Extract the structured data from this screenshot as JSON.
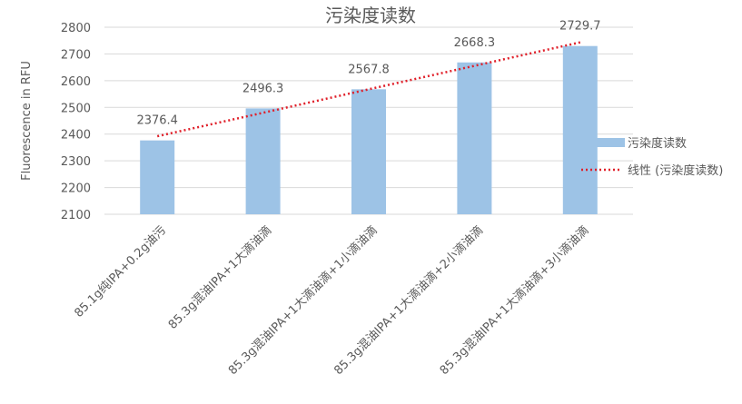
{
  "chart_data": {
    "type": "bar",
    "title": "污染度读数",
    "ylabel": "Fluorescence in RFU",
    "xlabel": "",
    "ylim": [
      2100,
      2800
    ],
    "yticks": [
      2100,
      2200,
      2300,
      2400,
      2500,
      2600,
      2700,
      2800
    ],
    "grid": true,
    "legend_placement": "right",
    "categories": [
      "85.1g纯IPA+0.2g油污",
      "85.3g混油IPA+1大滴油滴",
      "85.3g混油IPA+1大滴油滴+1小滴油滴",
      "85.3g混油IPA+1大滴油滴+2小滴油滴",
      "85.3g混油IPA+1大滴油滴+3小滴油滴"
    ],
    "series": [
      {
        "name": "污染度读数",
        "values": [
          2376.4,
          2496.3,
          2567.8,
          2668.3,
          2729.7
        ],
        "color": "#9dc3e6"
      }
    ],
    "data_labels": [
      "2376.4",
      "2496.3",
      "2567.8",
      "2668.3",
      "2729.7"
    ],
    "trendline": {
      "name": "线性 (污染度读数)",
      "type": "linear",
      "color": "#e0202a",
      "style": "dotted"
    }
  }
}
